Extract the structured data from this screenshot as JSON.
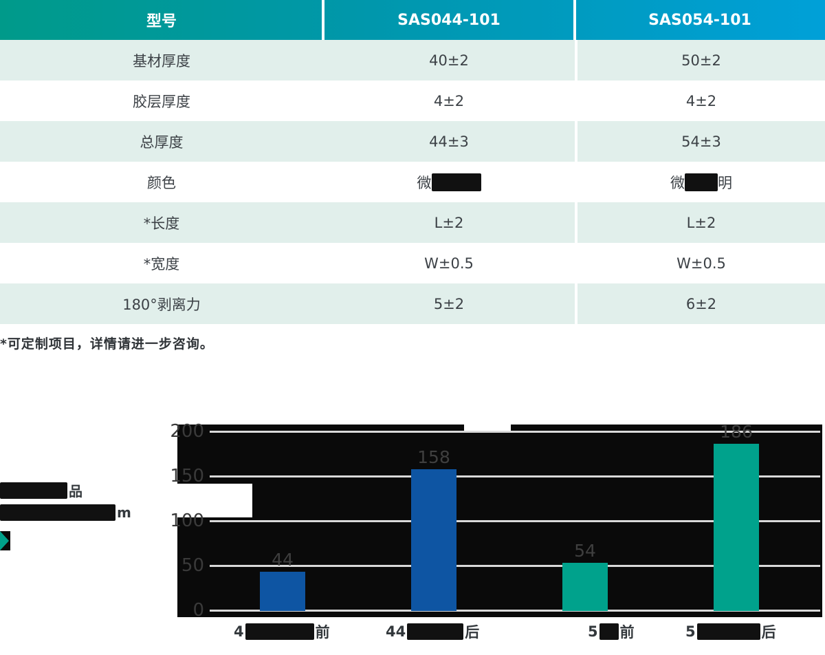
{
  "table": {
    "header": [
      "型号",
      "SAS044-101",
      "SAS054-101"
    ],
    "rows": [
      {
        "label": "基材厚度",
        "v1": "40±2",
        "v2": "50±2"
      },
      {
        "label": "胶层厚度",
        "v1": "4±2",
        "v2": "4±2"
      },
      {
        "label": "总厚度",
        "v1": "44±3",
        "v2": "54±3"
      },
      {
        "label": "颜色",
        "v1_pre": "微",
        "v2_pre": "微",
        "v2_post": "明"
      },
      {
        "label": "*长度",
        "v1": "L±2",
        "v2": "L±2"
      },
      {
        "label": "*宽度",
        "v1": "W±0.5",
        "v2": "W±0.5"
      },
      {
        "label": "180°剥离力",
        "v1": "5±2",
        "v2": "6±2"
      }
    ],
    "note": "*可定制项目，详情请进一步咨询。"
  },
  "legend": {
    "line1_visible": "品",
    "line2_visible": "m"
  },
  "chart_data": {
    "type": "bar",
    "categories": [
      "4■前",
      "44■后",
      "5■前",
      "5■后"
    ],
    "categories_display": [
      {
        "pre": "4",
        "post": "前"
      },
      {
        "pre": "44",
        "post": "后"
      },
      {
        "pre": "5",
        "post": "前"
      },
      {
        "pre": "5",
        "post": "后"
      }
    ],
    "values": [
      44,
      158,
      54,
      186
    ],
    "bar_colors": [
      "#0e55a3",
      "#0e55a3",
      "#00a28c",
      "#00a28c"
    ],
    "ylim": [
      0,
      200
    ],
    "ytick_labels": [
      "200",
      "150",
      "100",
      "50",
      "0"
    ],
    "grid": "horizontal",
    "legend_position": "left",
    "plot_background": "#0a0a0a"
  },
  "colors": {
    "header_gradient_start": "#009a8a",
    "header_gradient_end": "#00a0d8",
    "row_alt_green": "#e1efeb",
    "bar_blue": "#0e55a3",
    "bar_teal": "#00a28c",
    "gridline": "#d9d9d9",
    "text_dark": "#3c4146",
    "accent_teal": "#00a08a"
  }
}
